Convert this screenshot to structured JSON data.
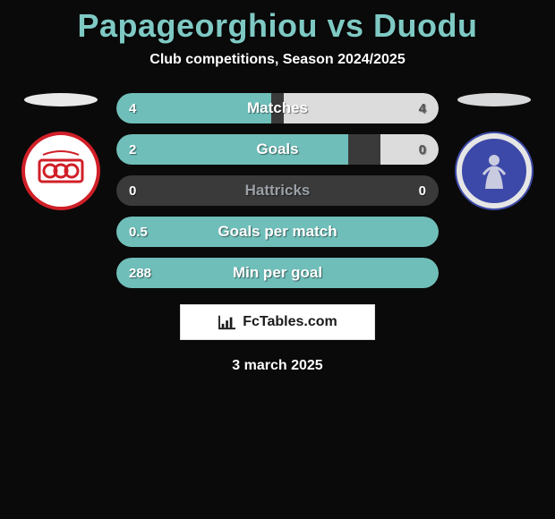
{
  "header": {
    "title": "Papageorghiou vs Duodu",
    "title_color": "#7fc9c4",
    "subtitle": "Club competitions, Season 2024/2025"
  },
  "crests": {
    "left": {
      "name": "left-club-crest",
      "bg": "#ffffff",
      "ring": "#d01f28",
      "accent": "#d01f28"
    },
    "right": {
      "name": "right-club-crest",
      "bg": "#3d49a8",
      "ring": "#e6e6e6",
      "accent": "#c9cbe0"
    }
  },
  "stat_track": {
    "bg": "#3a3a3a",
    "left_fill": "#6fbeb9",
    "right_fill": "#dcdcdc"
  },
  "stats": [
    {
      "label": "Matches",
      "left_val": "4",
      "right_val": "4",
      "left_pct": 48,
      "right_pct": 48,
      "label_color": "#ffffff"
    },
    {
      "label": "Goals",
      "left_val": "2",
      "right_val": "0",
      "left_pct": 72,
      "right_pct": 18,
      "label_color": "#ffffff"
    },
    {
      "label": "Hattricks",
      "left_val": "0",
      "right_val": "0",
      "left_pct": 0,
      "right_pct": 0,
      "label_color": "#9aa0a6"
    },
    {
      "label": "Goals per match",
      "left_val": "0.5",
      "right_val": "",
      "left_pct": 100,
      "right_pct": 0,
      "label_color": "#ffffff"
    },
    {
      "label": "Min per goal",
      "left_val": "288",
      "right_val": "",
      "left_pct": 100,
      "right_pct": 0,
      "label_color": "#ffffff"
    }
  ],
  "brand": {
    "text": "FcTables.com",
    "icon_color": "#1a1a1a"
  },
  "date": "3 march 2025"
}
